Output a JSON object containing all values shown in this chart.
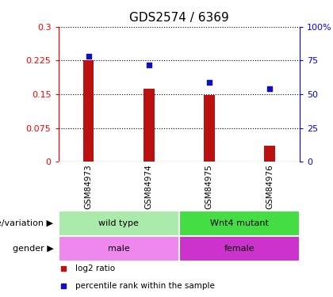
{
  "title": "GDS2574 / 6369",
  "samples": [
    "GSM84973",
    "GSM84974",
    "GSM84975",
    "GSM84976"
  ],
  "log2_ratio": [
    0.225,
    0.162,
    0.148,
    0.035
  ],
  "percentile_rank": [
    78,
    72,
    59,
    54
  ],
  "left_yticks": [
    0,
    0.075,
    0.15,
    0.225,
    0.3
  ],
  "left_yticklabels": [
    "0",
    "0.075",
    "0.15",
    "0.225",
    "0.3"
  ],
  "right_yticks": [
    0,
    25,
    50,
    75,
    100
  ],
  "right_yticklabels": [
    "0",
    "25",
    "50",
    "75",
    "100%"
  ],
  "ylim_left": [
    0,
    0.3
  ],
  "ylim_right": [
    0,
    100
  ],
  "bar_color": "#bb1111",
  "scatter_color": "#1111bb",
  "annotation_rows": [
    {
      "label": "genotype/variation",
      "groups": [
        {
          "samples": [
            0,
            1
          ],
          "text": "wild type",
          "color": "#aaeaaa"
        },
        {
          "samples": [
            2,
            3
          ],
          "text": "Wnt4 mutant",
          "color": "#44dd44"
        }
      ]
    },
    {
      "label": "gender",
      "groups": [
        {
          "samples": [
            0,
            1
          ],
          "text": "male",
          "color": "#ee88ee"
        },
        {
          "samples": [
            2,
            3
          ],
          "text": "female",
          "color": "#cc33cc"
        }
      ]
    }
  ],
  "legend_items": [
    {
      "label": "log2 ratio",
      "color": "#bb1111"
    },
    {
      "label": "percentile rank within the sample",
      "color": "#1111bb"
    }
  ],
  "sample_bg": "#cccccc",
  "background_color": "#ffffff",
  "tick_fontsize": 8,
  "title_fontsize": 11,
  "annot_fontsize": 8,
  "sample_fontsize": 7.5
}
